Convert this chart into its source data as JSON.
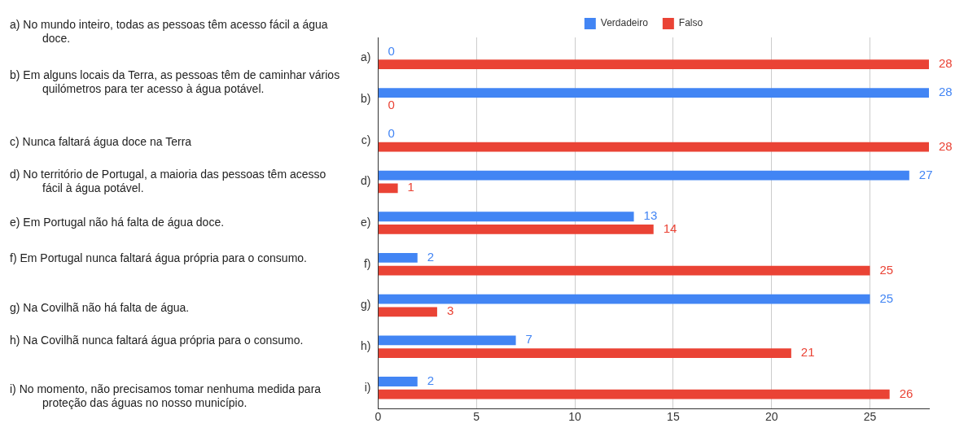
{
  "chart_data": {
    "type": "bar",
    "orientation": "horizontal",
    "categories": [
      "a)",
      "b)",
      "c)",
      "d)",
      "e)",
      "f)",
      "g)",
      "h)",
      "i)"
    ],
    "series": [
      {
        "name": "Verdadeiro",
        "color": "#4285f4",
        "values": [
          0,
          28,
          0,
          27,
          13,
          2,
          25,
          7,
          2
        ]
      },
      {
        "name": "Falso",
        "color": "#ea4335",
        "values": [
          28,
          0,
          28,
          1,
          14,
          25,
          3,
          21,
          26
        ]
      }
    ],
    "xlim": [
      0,
      28
    ],
    "xticks": [
      0,
      5,
      10,
      15,
      20,
      25
    ],
    "grid": "x",
    "legend": "top",
    "data_labels": true,
    "annotations": [
      "a) No mundo inteiro, todas as pessoas têm acesso fácil a água doce.",
      "b) Em alguns locais da Terra, as pessoas têm de caminhar vários quilómetros para ter acesso à água potável.",
      "c) Nunca faltará água doce na Terra",
      "d) No território de Portugal, a maioria das pessoas têm acesso fácil à água potável.",
      "e) Em Portugal não há falta de água doce.",
      "f) Em Portugal nunca faltará água própria para o consumo.",
      "g) Na Covilhã não há falta de água.",
      "h) Na Covilhã nunca faltará água própria para o consumo.",
      "i) No momento, não precisamos tomar nenhuma medida para proteção das águas no nosso município."
    ]
  }
}
